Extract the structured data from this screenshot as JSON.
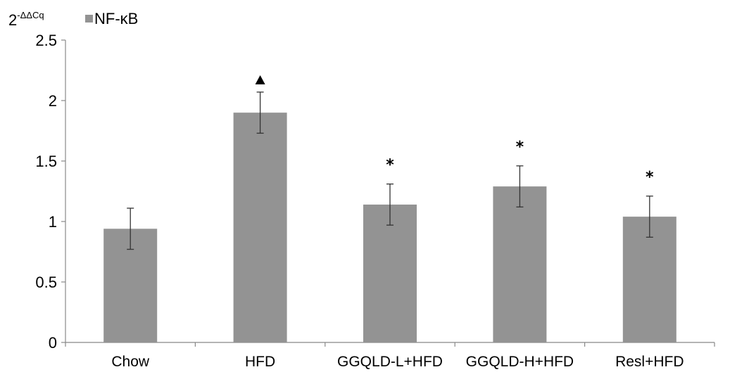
{
  "chart_data": {
    "type": "bar",
    "ylabel_base": "2",
    "ylabel_sup": "-ΔΔCq",
    "ylim": [
      0,
      2.5
    ],
    "yticks": [
      "0",
      "0.5",
      "1",
      "1.5",
      "2",
      "2.5"
    ],
    "ytick_values": [
      0,
      0.5,
      1,
      1.5,
      2,
      2.5
    ],
    "categories": [
      "Chow",
      "HFD",
      "GGQLD-L+HFD",
      "GGQLD-H+HFD",
      "Resl+HFD"
    ],
    "series": [
      {
        "name": "NF-κB",
        "values": [
          0.94,
          1.9,
          1.14,
          1.29,
          1.04
        ],
        "errors": [
          0.17,
          0.17,
          0.17,
          0.17,
          0.17
        ],
        "color": "#939393"
      }
    ],
    "annotations": [
      "",
      "▲",
      "*",
      "*",
      "*"
    ],
    "legend_position": "top-left",
    "grid": false
  }
}
